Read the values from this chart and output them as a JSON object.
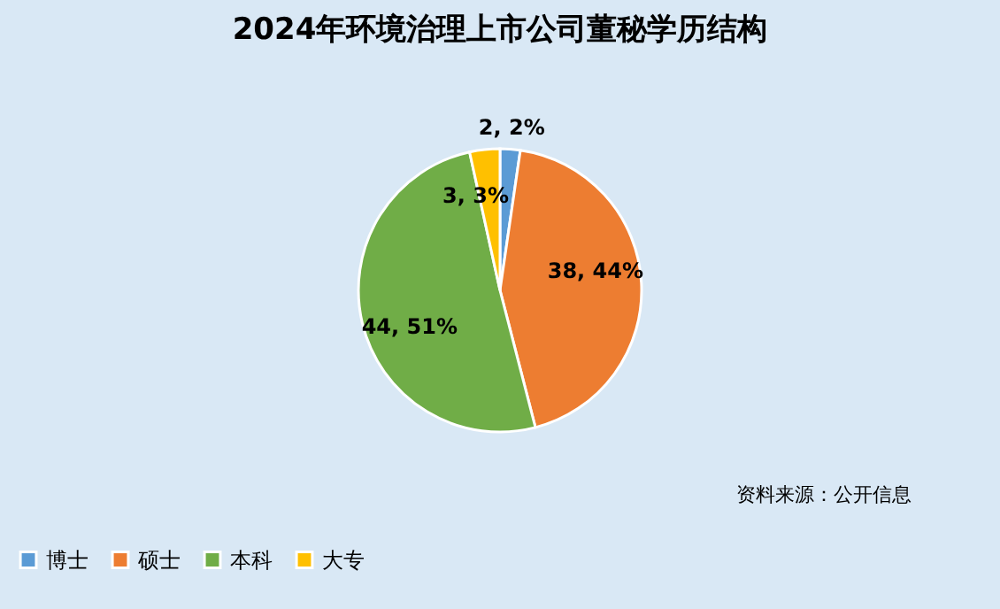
{
  "chart_data": {
    "type": "pie",
    "title": "2024年环境治理上市公司董秘学历结构",
    "categories": [
      "博士",
      "硕士",
      "本科",
      "大专"
    ],
    "values": [
      2,
      38,
      44,
      3
    ],
    "colors": [
      "#5b9bd5",
      "#ed7d31",
      "#70ad47",
      "#ffc000"
    ],
    "value_labels": [
      "2, 2%",
      "38, 44%",
      "44, 51%",
      "3, 3%"
    ],
    "legend": "bottom",
    "annotations": [
      "资料来源：公开信息"
    ]
  }
}
